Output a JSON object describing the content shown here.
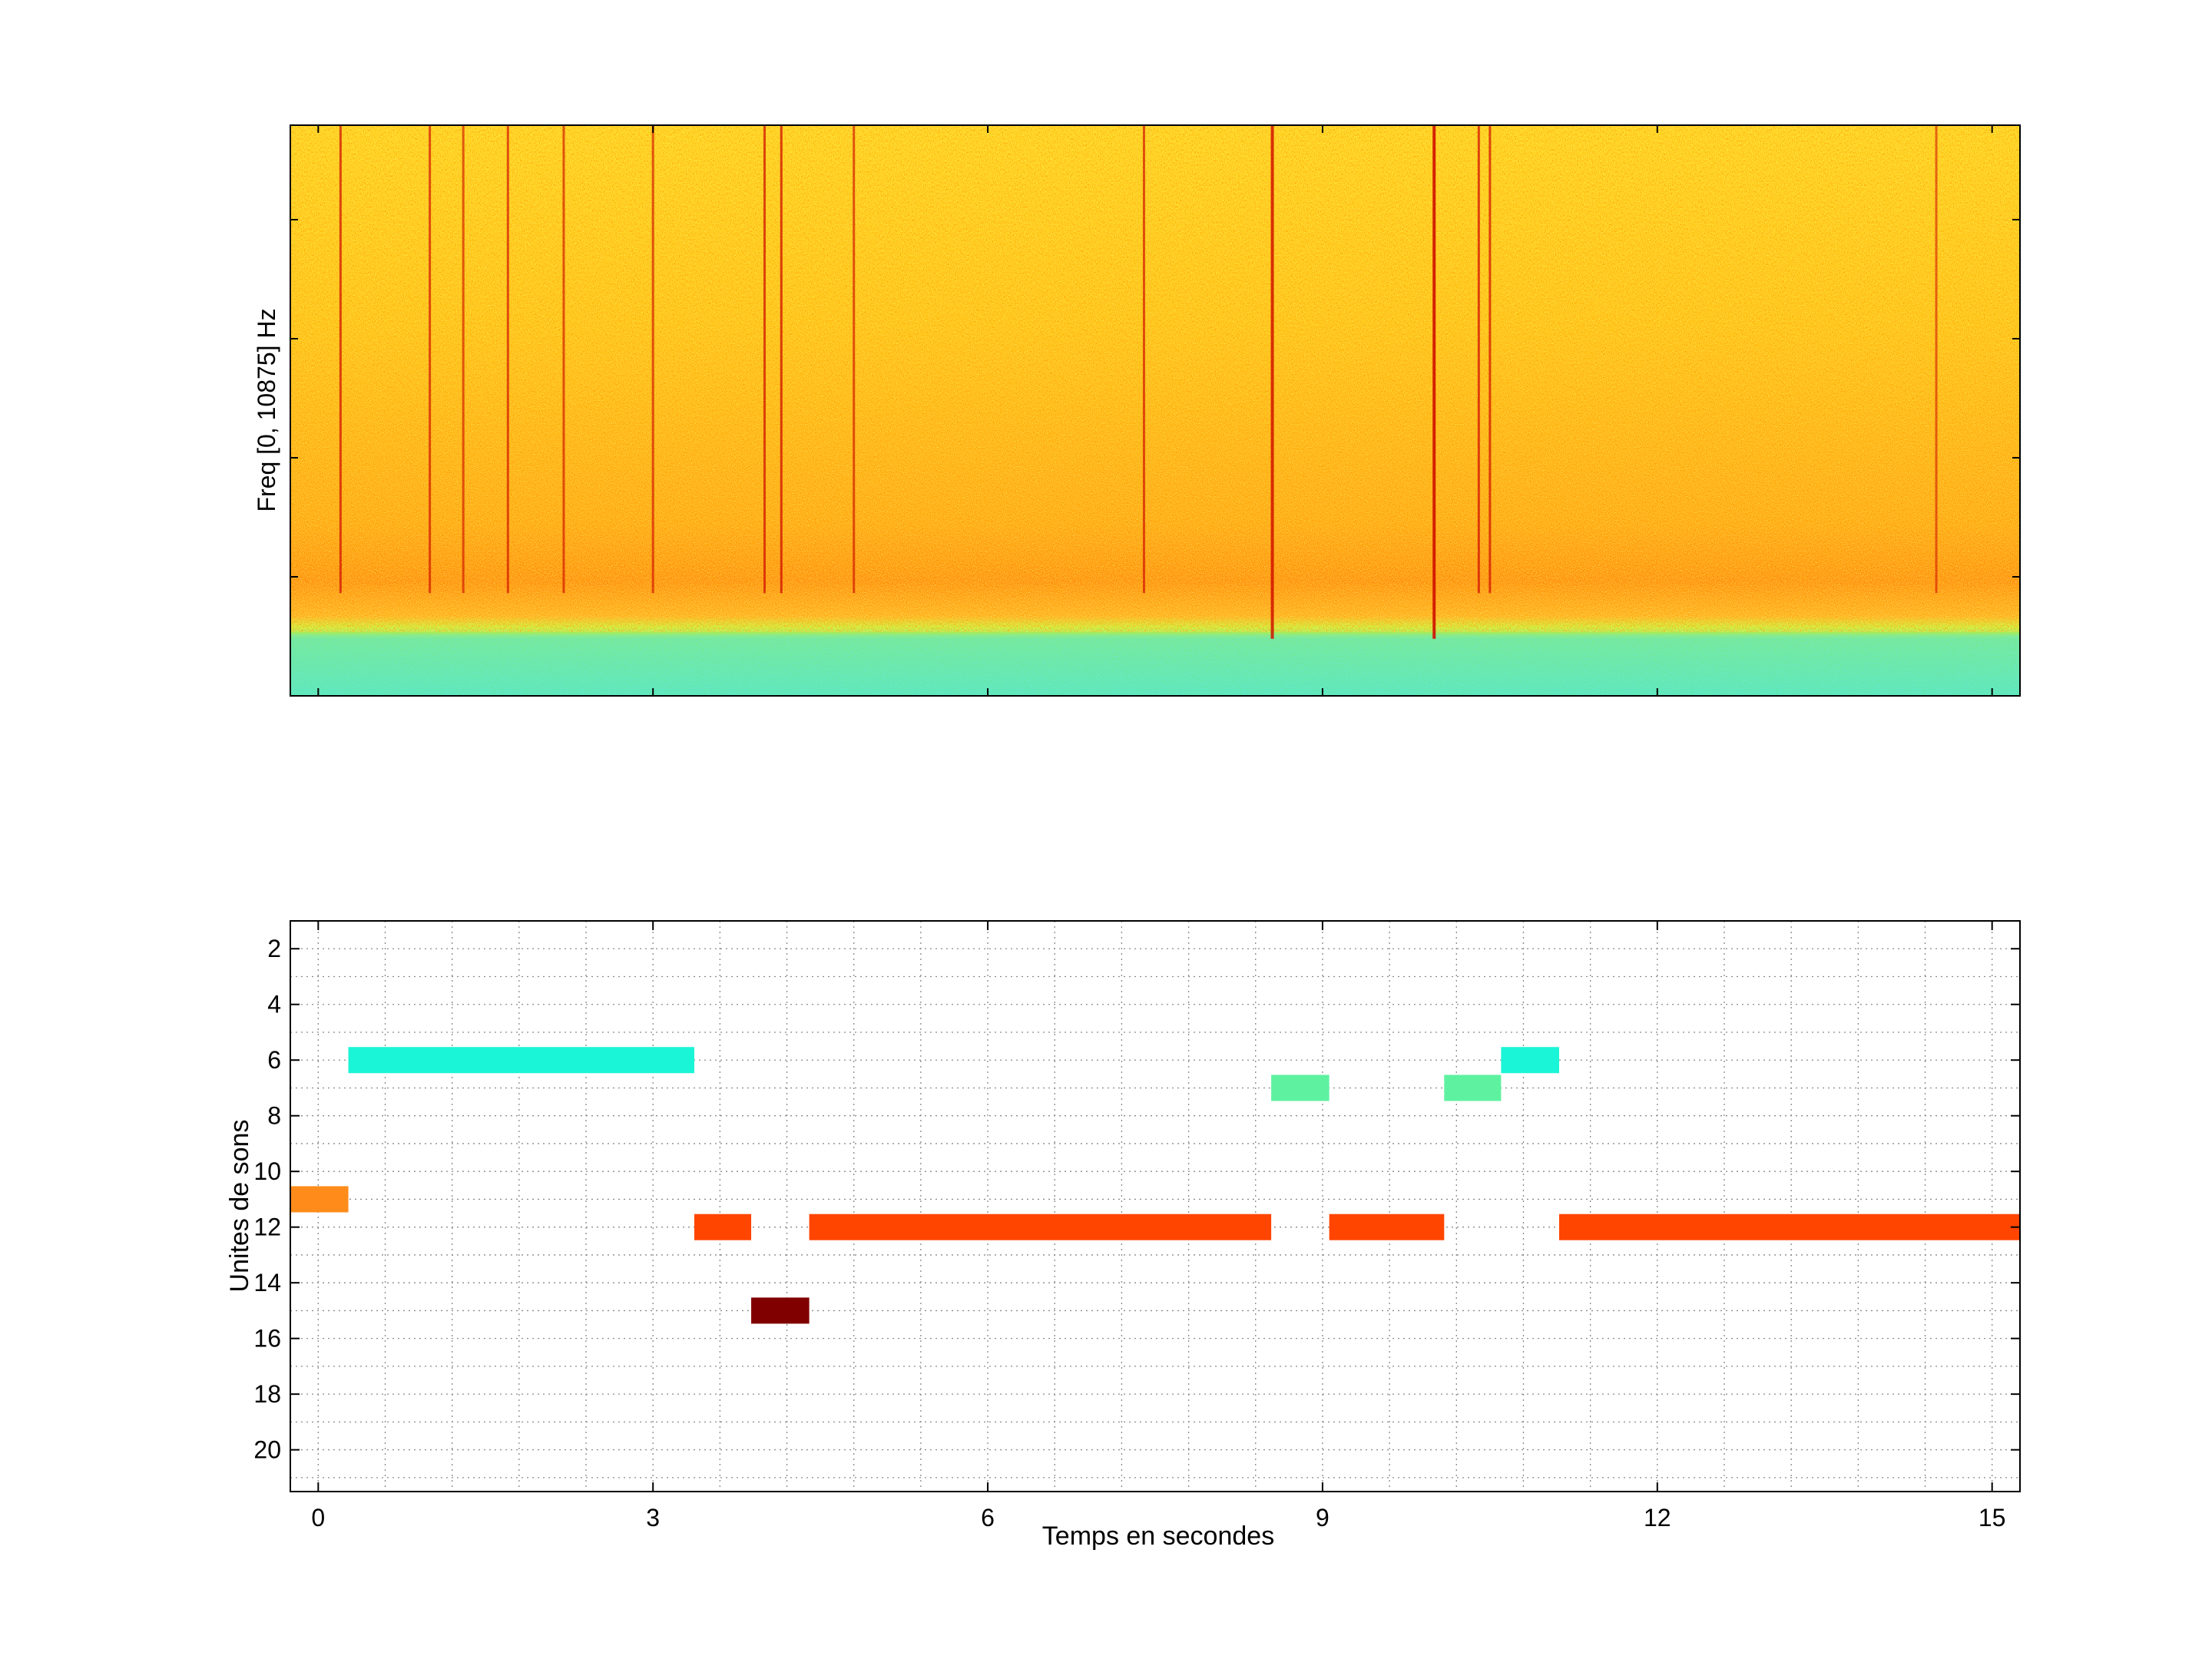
{
  "chart_data": [
    {
      "type": "heatmap",
      "ylabel": "Freq [0, 10875] Hz",
      "xlabel": "",
      "colormap": "jet",
      "background_color": "#ffd21e",
      "low_band_color": "#6ee6a6",
      "vertical_streaks": [
        {
          "t": 0.2,
          "strength": 0.7
        },
        {
          "t": 1.0,
          "strength": 0.6
        },
        {
          "t": 1.3,
          "strength": 0.5
        },
        {
          "t": 1.7,
          "strength": 0.6
        },
        {
          "t": 2.2,
          "strength": 0.55
        },
        {
          "t": 3.0,
          "strength": 0.55
        },
        {
          "t": 4.0,
          "strength": 0.7
        },
        {
          "t": 4.15,
          "strength": 0.75
        },
        {
          "t": 4.8,
          "strength": 0.55
        },
        {
          "t": 7.4,
          "strength": 0.6
        },
        {
          "t": 8.55,
          "strength": 0.9
        },
        {
          "t": 10.0,
          "strength": 1.0
        },
        {
          "t": 10.4,
          "strength": 0.7
        },
        {
          "t": 10.5,
          "strength": 0.7
        },
        {
          "t": 14.5,
          "strength": 0.4
        }
      ]
    },
    {
      "type": "bar",
      "xlabel": "Temps en secondes",
      "ylabel": "Unites de sons",
      "xlim": [
        -0.25,
        15.25
      ],
      "ylim": [
        1,
        21.5
      ],
      "xticks": [
        0,
        3,
        6,
        9,
        12,
        15
      ],
      "yticks": [
        2,
        4,
        6,
        8,
        10,
        12,
        14,
        16,
        18,
        20
      ],
      "x_minor_step": 0.6,
      "y_minor_step": 1,
      "grid": true,
      "segments": [
        {
          "unit": 11,
          "start": -0.25,
          "end": 0.27,
          "color": "#ff8c1a"
        },
        {
          "unit": 6,
          "start": 0.27,
          "end": 3.37,
          "color": "#19f5d6"
        },
        {
          "unit": 12,
          "start": 3.37,
          "end": 3.88,
          "color": "#ff4500"
        },
        {
          "unit": 15,
          "start": 3.88,
          "end": 4.4,
          "color": "#800000"
        },
        {
          "unit": 12,
          "start": 4.4,
          "end": 8.54,
          "color": "#ff4500"
        },
        {
          "unit": 7,
          "start": 8.54,
          "end": 9.06,
          "color": "#5ef2a0"
        },
        {
          "unit": 12,
          "start": 9.06,
          "end": 10.09,
          "color": "#ff4500"
        },
        {
          "unit": 7,
          "start": 10.09,
          "end": 10.6,
          "color": "#5ef2a0"
        },
        {
          "unit": 6,
          "start": 10.6,
          "end": 11.12,
          "color": "#19f5d6"
        },
        {
          "unit": 12,
          "start": 11.12,
          "end": 15.25,
          "color": "#ff4500"
        }
      ]
    }
  ]
}
